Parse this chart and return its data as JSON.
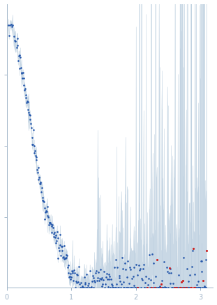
{
  "xlim": [
    0,
    3.2
  ],
  "xlabel_ticks": [
    0,
    1,
    2,
    3
  ],
  "axis_color": "#a0b4c8",
  "dot_color_blue": "#2255aa",
  "dot_color_red": "#cc2222",
  "error_color": "#b8ccdd",
  "background": "#ffffff",
  "figsize": [
    3.11,
    4.37
  ],
  "dpi": 100
}
